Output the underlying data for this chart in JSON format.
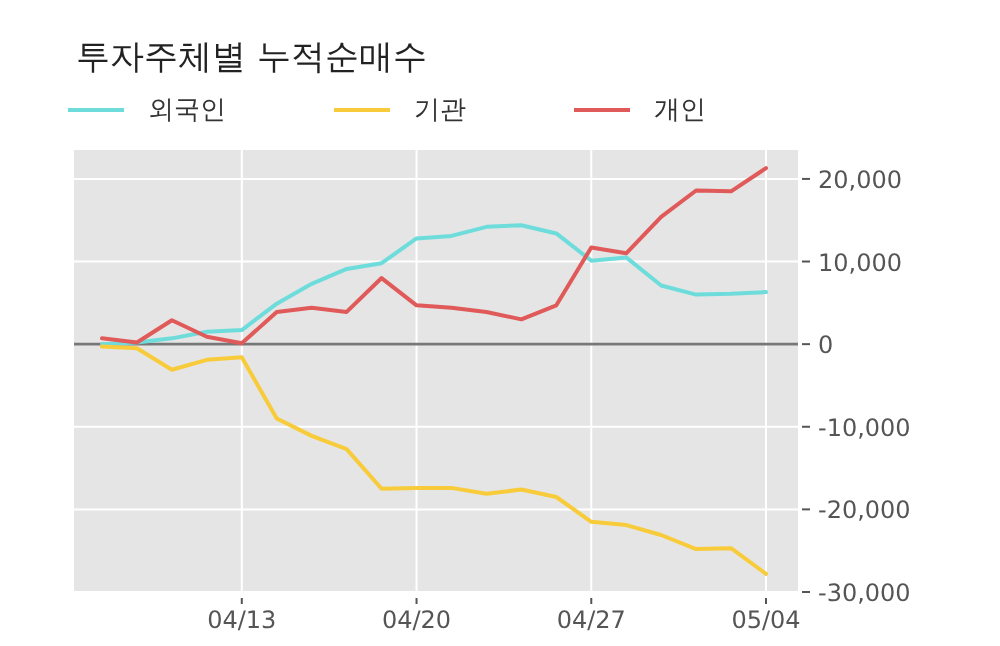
{
  "chart_data": {
    "type": "line",
    "title": "투자주체별 누적순매수",
    "categories": [
      null,
      null,
      null,
      null,
      "04/13",
      null,
      null,
      null,
      null,
      "04/20",
      null,
      null,
      null,
      null,
      "04/27",
      null,
      null,
      null,
      null,
      "05/04"
    ],
    "series": [
      {
        "name": "외국인",
        "color": "#6fdcdc",
        "values": [
          0,
          200,
          700,
          1500,
          1700,
          4900,
          7300,
          9100,
          9800,
          12800,
          13100,
          14200,
          14400,
          13400,
          10100,
          10500,
          7100,
          6000,
          6100,
          6300
        ]
      },
      {
        "name": "기관",
        "color": "#f8cb3a",
        "values": [
          -300,
          -500,
          -3100,
          -1900,
          -1600,
          -9000,
          -11100,
          -12700,
          -17500,
          -17400,
          -17400,
          -18100,
          -17600,
          -18500,
          -21500,
          -21900,
          -23100,
          -24800,
          -24700,
          -27800
        ]
      },
      {
        "name": "개인",
        "color": "#e05a5a",
        "values": [
          700,
          200,
          2900,
          900,
          100,
          3900,
          4400,
          3900,
          8000,
          4700,
          4400,
          3900,
          3000,
          4700,
          11700,
          11000,
          15400,
          18600,
          18500,
          21300
        ]
      }
    ],
    "ylim": [
      -30000,
      23500
    ],
    "yticks": [
      {
        "value": -30000,
        "label": "-30,000"
      },
      {
        "value": -20000,
        "label": "-20,000"
      },
      {
        "value": -10000,
        "label": "-10,000"
      },
      0,
      {
        "value": 10000,
        "label": "10,000"
      },
      {
        "value": 20000,
        "label": "20,000"
      }
    ],
    "ref_lines": [
      {
        "axis": "y",
        "value": 0,
        "color": "#777777"
      }
    ],
    "grid": true,
    "legend": "top left",
    "marker": "none",
    "line_style": "solid"
  }
}
